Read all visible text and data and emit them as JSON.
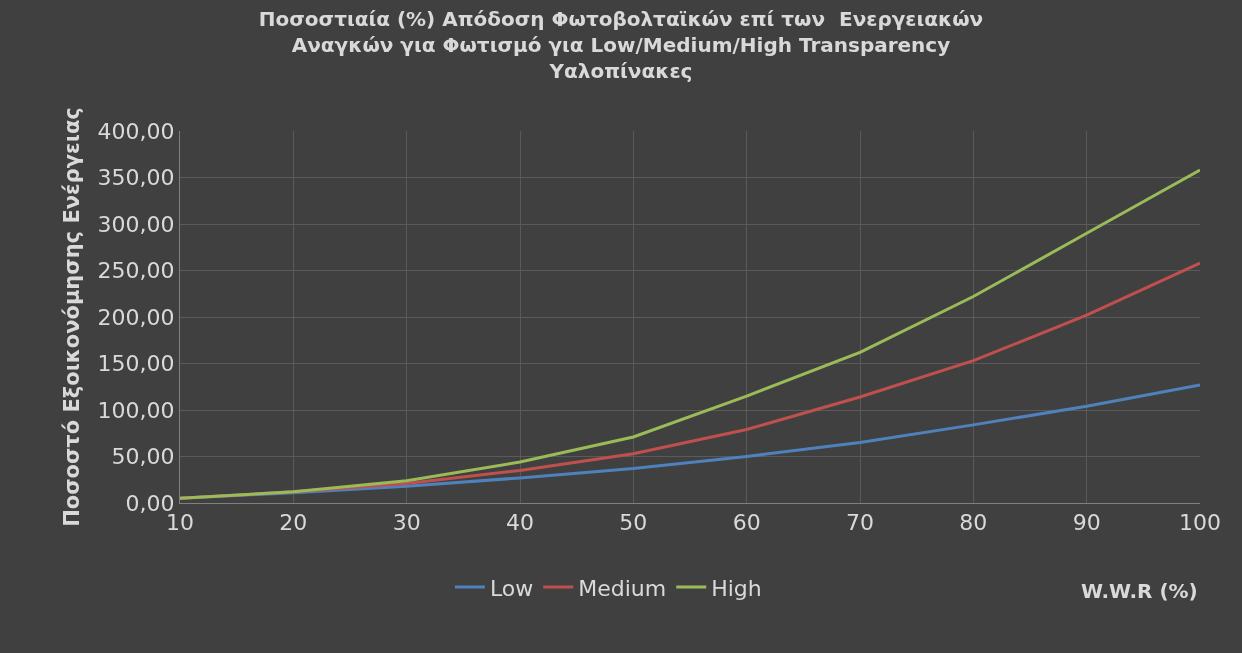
{
  "chart_data": {
    "type": "line",
    "title": "Ποσοστιαία (%) Απόδοση Φωτοβολταϊκών επί των  Ενεργειακών Αναγκών για Φωτισμό για Low/Medium/High Transparency Υαλοπίνακες",
    "xlabel": "W.W.R (%)",
    "ylabel": "Ποσοστό Εξοικονόμησης Ενέργειας",
    "x": [
      10,
      20,
      30,
      40,
      50,
      60,
      70,
      80,
      90,
      100
    ],
    "series": [
      {
        "name": "Low",
        "color": "#4f81bd",
        "values": [
          5,
          11,
          18,
          27,
          37,
          50,
          65,
          84,
          104,
          127
        ]
      },
      {
        "name": "Medium",
        "color": "#c0504d",
        "values": [
          5,
          12,
          21,
          35,
          53,
          79,
          114,
          153,
          202,
          258
        ]
      },
      {
        "name": "High",
        "color": "#9bbb59",
        "values": [
          5,
          12,
          24,
          44,
          71,
          115,
          162,
          222,
          290,
          358
        ]
      }
    ],
    "xlim": [
      10,
      100
    ],
    "xticks": [
      10,
      20,
      30,
      40,
      50,
      60,
      70,
      80,
      90,
      100
    ],
    "ylim": [
      0,
      400
    ],
    "yticks": [
      {
        "value": 0,
        "label": "0,00"
      },
      {
        "value": 50,
        "label": "50,00"
      },
      {
        "value": 100,
        "label": "100,00"
      },
      {
        "value": 150,
        "label": "150,00"
      },
      {
        "value": 200,
        "label": "200,00"
      },
      {
        "value": 250,
        "label": "250,00"
      },
      {
        "value": 300,
        "label": "300,00"
      },
      {
        "value": 350,
        "label": "350,00"
      },
      {
        "value": 400,
        "label": "400,00"
      }
    ],
    "grid": true,
    "legend": "bottom",
    "marker": "none",
    "line_style": "solid"
  }
}
